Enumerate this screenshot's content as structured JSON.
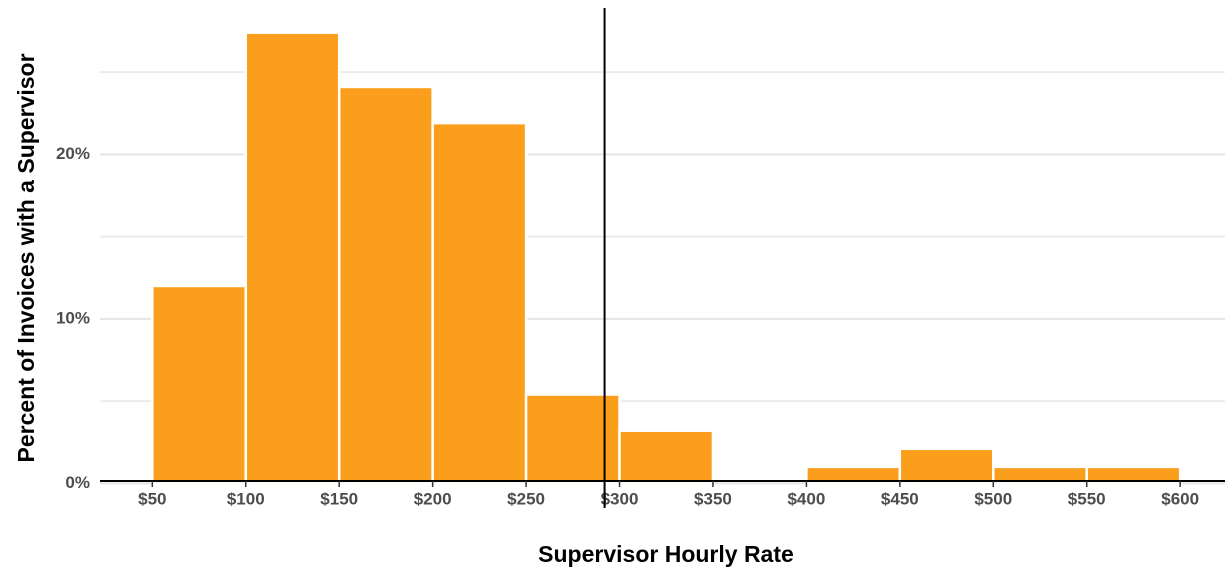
{
  "chart_data": {
    "type": "histogram",
    "xlabel": "Supervisor Hourly Rate",
    "ylabel": "Percent of Invoices with a Supervisor",
    "bins": [
      50,
      100,
      150,
      200,
      250,
      300,
      350,
      400,
      450,
      500,
      550,
      600
    ],
    "values": [
      12.0,
      27.4,
      24.1,
      21.9,
      5.4,
      3.2,
      0,
      1.0,
      2.1,
      1.0,
      1.0
    ],
    "color": "#fa9e1c",
    "vline": 292,
    "xlim": [
      22,
      624
    ],
    "xticks": [
      {
        "value": 50,
        "label": "$50"
      },
      {
        "value": 100,
        "label": "$100"
      },
      {
        "value": 150,
        "label": "$150"
      },
      {
        "value": 200,
        "label": "$200"
      },
      {
        "value": 250,
        "label": "$250"
      },
      {
        "value": 300,
        "label": "$300"
      },
      {
        "value": 350,
        "label": "$350"
      },
      {
        "value": 400,
        "label": "$400"
      },
      {
        "value": 450,
        "label": "$450"
      },
      {
        "value": 500,
        "label": "$500"
      },
      {
        "value": 550,
        "label": "$550"
      },
      {
        "value": 600,
        "label": "$600"
      }
    ],
    "ylim": [
      -1.5,
      28.9
    ],
    "yticks": [
      {
        "value": 0,
        "label": "0%"
      },
      {
        "value": 10,
        "label": "10%"
      },
      {
        "value": 20,
        "label": "20%"
      }
    ],
    "minor_yticks": [
      5,
      15,
      25
    ],
    "grid": true
  }
}
